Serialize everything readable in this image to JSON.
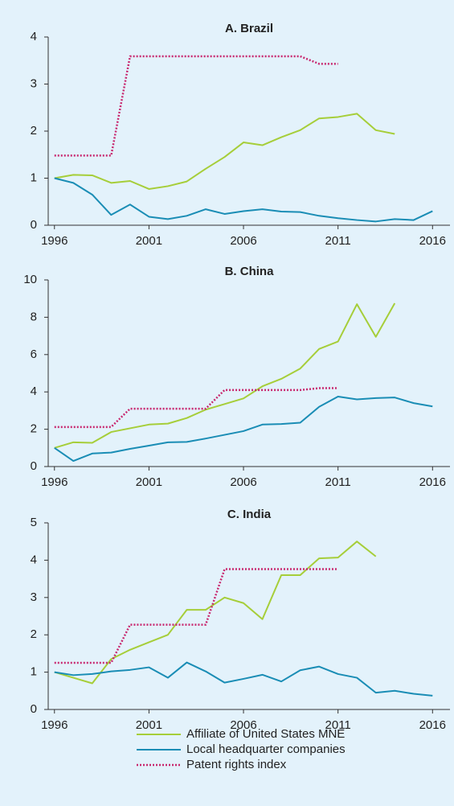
{
  "chart_data": [
    {
      "type": "line",
      "title": "A. Brazil",
      "x": [
        1996,
        1997,
        1998,
        1999,
        2000,
        2001,
        2002,
        2003,
        2004,
        2005,
        2006,
        2007,
        2008,
        2009,
        2010,
        2011,
        2012,
        2013,
        2014,
        2015,
        2016
      ],
      "xlim": [
        1995.67,
        2016.2
      ],
      "xticks": [
        1996,
        2001,
        2006,
        2011,
        2016
      ],
      "ylim": [
        0,
        4
      ],
      "yticks": [
        0,
        1,
        2,
        3,
        4
      ],
      "series": [
        {
          "name": "Affiliate of United States MNE",
          "color": "#a6ce39",
          "values": [
            1.0,
            1.07,
            1.06,
            0.9,
            0.94,
            0.77,
            0.83,
            0.93,
            1.2,
            1.45,
            1.76,
            1.7,
            1.87,
            2.02,
            2.27,
            2.3,
            2.37,
            2.02,
            1.94,
            null,
            null
          ]
        },
        {
          "name": "Local headquarter companies",
          "color": "#1a8db5",
          "values": [
            1.0,
            0.9,
            0.65,
            0.22,
            0.44,
            0.18,
            0.13,
            0.2,
            0.34,
            0.24,
            0.3,
            0.34,
            0.29,
            0.28,
            0.2,
            0.15,
            0.11,
            0.08,
            0.13,
            0.11,
            0.3
          ]
        },
        {
          "name": "Patent rights index",
          "color": "#c8286f",
          "dash": true,
          "values": [
            1.48,
            1.48,
            1.48,
            1.48,
            3.59,
            3.59,
            3.59,
            3.59,
            3.59,
            3.59,
            3.59,
            3.59,
            3.59,
            3.59,
            3.43,
            3.43,
            null,
            null,
            null,
            null,
            null
          ]
        }
      ]
    },
    {
      "type": "line",
      "title": "B. China",
      "x": [
        1996,
        1997,
        1998,
        1999,
        2000,
        2001,
        2002,
        2003,
        2004,
        2005,
        2006,
        2007,
        2008,
        2009,
        2010,
        2011,
        2012,
        2013,
        2014,
        2015,
        2016
      ],
      "xlim": [
        1995.67,
        2016.2
      ],
      "xticks": [
        1996,
        2001,
        2006,
        2011,
        2016
      ],
      "ylim": [
        0,
        10
      ],
      "yticks": [
        0,
        2,
        4,
        6,
        8,
        10
      ],
      "series": [
        {
          "color": "#a6ce39",
          "values": [
            1.0,
            1.3,
            1.27,
            1.85,
            2.05,
            2.25,
            2.3,
            2.6,
            3.05,
            3.35,
            3.65,
            4.3,
            4.7,
            5.25,
            6.3,
            6.7,
            8.7,
            6.95,
            8.75,
            null,
            null
          ]
        },
        {
          "color": "#1a8db5",
          "values": [
            1.0,
            0.3,
            0.7,
            0.75,
            0.95,
            1.12,
            1.3,
            1.32,
            1.5,
            1.7,
            1.9,
            2.25,
            2.28,
            2.35,
            3.2,
            3.75,
            3.6,
            3.67,
            3.7,
            3.4,
            3.22
          ]
        },
        {
          "color": "#c8286f",
          "dash": true,
          "values": [
            2.12,
            2.12,
            2.12,
            2.12,
            3.1,
            3.1,
            3.1,
            3.1,
            3.1,
            4.1,
            4.1,
            4.1,
            4.1,
            4.1,
            4.2,
            4.2,
            null,
            null,
            null,
            null,
            null
          ]
        }
      ]
    },
    {
      "type": "line",
      "title": "C. India",
      "x": [
        1996,
        1997,
        1998,
        1999,
        2000,
        2001,
        2002,
        2003,
        2004,
        2005,
        2006,
        2007,
        2008,
        2009,
        2010,
        2011,
        2012,
        2013,
        2014,
        2015,
        2016
      ],
      "xlim": [
        1995.67,
        2016.2
      ],
      "xticks": [
        1996,
        2001,
        2006,
        2011,
        2016
      ],
      "ylim": [
        0,
        5
      ],
      "yticks": [
        0,
        1,
        2,
        3,
        4,
        5
      ],
      "series": [
        {
          "color": "#a6ce39",
          "values": [
            1.0,
            0.85,
            0.7,
            1.35,
            1.6,
            1.8,
            2.0,
            2.67,
            2.67,
            3.0,
            2.85,
            2.42,
            3.6,
            3.6,
            4.05,
            4.07,
            4.5,
            4.1,
            null,
            null,
            null
          ]
        },
        {
          "color": "#1a8db5",
          "values": [
            1.0,
            0.92,
            0.95,
            1.02,
            1.06,
            1.13,
            0.85,
            1.26,
            1.02,
            0.72,
            0.82,
            0.93,
            0.75,
            1.05,
            1.15,
            0.95,
            0.85,
            0.45,
            0.5,
            0.42,
            0.37
          ]
        },
        {
          "color": "#c8286f",
          "dash": true,
          "values": [
            1.25,
            1.25,
            1.25,
            1.25,
            2.27,
            2.27,
            2.27,
            2.27,
            2.27,
            3.76,
            3.76,
            3.76,
            3.76,
            3.76,
            3.76,
            3.76,
            null,
            null,
            null,
            null,
            null
          ]
        }
      ]
    }
  ]
}
